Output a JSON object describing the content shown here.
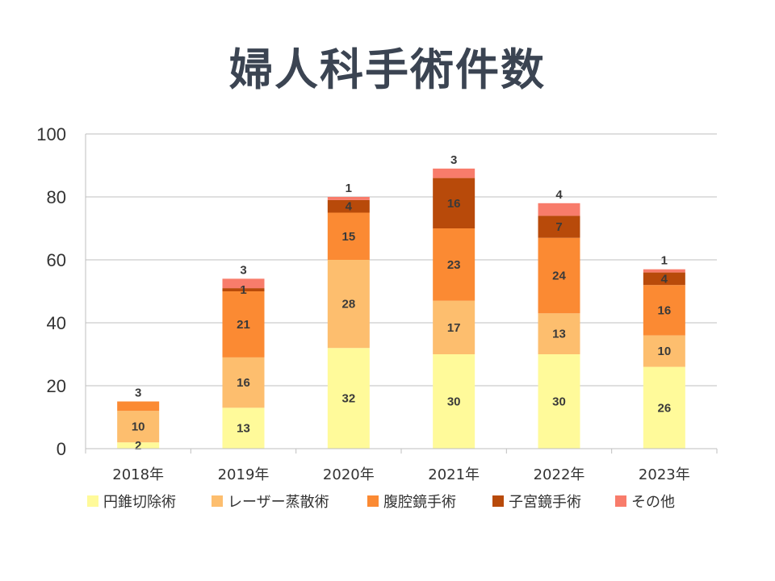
{
  "title": "婦人科手術件数",
  "chart_data": {
    "type": "bar",
    "stacked": true,
    "categories": [
      "2018年",
      "2019年",
      "2020年",
      "2021年",
      "2022年",
      "2023年"
    ],
    "series": [
      {
        "name": "円錐切除術",
        "color": "#FFFA9A",
        "values": [
          2,
          13,
          32,
          30,
          30,
          26
        ]
      },
      {
        "name": "レーザー蒸散術",
        "color": "#FDBE6E",
        "values": [
          10,
          16,
          28,
          17,
          13,
          10
        ]
      },
      {
        "name": "腹腔鏡手術",
        "color": "#FB8A33",
        "values": [
          3,
          21,
          15,
          23,
          24,
          16
        ]
      },
      {
        "name": "子宮鏡手術",
        "color": "#B84A0A",
        "values": [
          0,
          1,
          4,
          16,
          7,
          4
        ]
      },
      {
        "name": "その他",
        "color": "#F87C6B",
        "values": [
          0,
          3,
          1,
          3,
          4,
          1
        ]
      }
    ],
    "ylim": [
      0,
      100
    ],
    "yticks": [
      0,
      20,
      40,
      60,
      80,
      100
    ],
    "grid": true,
    "legend": "bottom"
  }
}
